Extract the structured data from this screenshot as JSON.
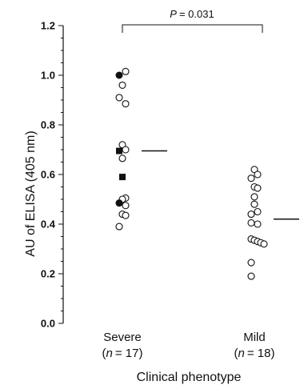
{
  "chart_data": {
    "type": "scatter",
    "ylabel": "AU of ELISA (405 nm)",
    "xlabel": "Clinical phenotype",
    "ylim": [
      0,
      1.2
    ],
    "yticks": [
      "0.0",
      "0.2",
      "0.4",
      "0.6",
      "0.8",
      "1.0",
      "1.2"
    ],
    "grid": false,
    "categories": [
      {
        "name": "Severe",
        "n_label": "n",
        "n_value": "= 17"
      },
      {
        "name": "Mild",
        "n_label": "n",
        "n_value": "= 18"
      }
    ],
    "significance": {
      "label": "P",
      "value": "= 0.031"
    },
    "groups": [
      {
        "category": "Severe",
        "mean": 0.695,
        "points": [
          {
            "y": 1.015,
            "dx": 1,
            "marker": "open-circle"
          },
          {
            "y": 1.0,
            "dx": -1,
            "marker": "filled-circle"
          },
          {
            "y": 0.96,
            "dx": 0,
            "marker": "open-circle"
          },
          {
            "y": 0.91,
            "dx": -1,
            "marker": "open-circle"
          },
          {
            "y": 0.885,
            "dx": 1,
            "marker": "open-circle"
          },
          {
            "y": 0.72,
            "dx": 0,
            "marker": "open-circle"
          },
          {
            "y": 0.7,
            "dx": 1,
            "marker": "open-circle"
          },
          {
            "y": 0.695,
            "dx": -1,
            "marker": "filled-square"
          },
          {
            "y": 0.665,
            "dx": 0,
            "marker": "open-circle"
          },
          {
            "y": 0.59,
            "dx": 0,
            "marker": "filled-square"
          },
          {
            "y": 0.505,
            "dx": 1,
            "marker": "open-circle"
          },
          {
            "y": 0.5,
            "dx": 0,
            "marker": "open-circle"
          },
          {
            "y": 0.485,
            "dx": -1,
            "marker": "filled-circle"
          },
          {
            "y": 0.475,
            "dx": 1,
            "marker": "open-circle"
          },
          {
            "y": 0.44,
            "dx": 0,
            "marker": "open-circle"
          },
          {
            "y": 0.435,
            "dx": 1,
            "marker": "open-circle"
          },
          {
            "y": 0.39,
            "dx": -1,
            "marker": "open-circle"
          }
        ]
      },
      {
        "category": "Mild",
        "mean": 0.42,
        "points": [
          {
            "y": 0.62,
            "dx": 0,
            "marker": "open-circle"
          },
          {
            "y": 0.6,
            "dx": 1,
            "marker": "open-circle"
          },
          {
            "y": 0.585,
            "dx": -1,
            "marker": "open-circle"
          },
          {
            "y": 0.55,
            "dx": 0,
            "marker": "open-circle"
          },
          {
            "y": 0.545,
            "dx": 1,
            "marker": "open-circle"
          },
          {
            "y": 0.51,
            "dx": 0,
            "marker": "open-circle"
          },
          {
            "y": 0.48,
            "dx": 0,
            "marker": "open-circle"
          },
          {
            "y": 0.45,
            "dx": 1,
            "marker": "open-circle"
          },
          {
            "y": 0.44,
            "dx": -1,
            "marker": "open-circle"
          },
          {
            "y": 0.405,
            "dx": -1,
            "marker": "open-circle"
          },
          {
            "y": 0.4,
            "dx": 1,
            "marker": "open-circle"
          },
          {
            "y": 0.34,
            "dx": -1,
            "marker": "open-circle"
          },
          {
            "y": 0.335,
            "dx": 0,
            "marker": "open-circle"
          },
          {
            "y": 0.33,
            "dx": 1,
            "marker": "open-circle"
          },
          {
            "y": 0.325,
            "dx": 2,
            "marker": "open-circle"
          },
          {
            "y": 0.32,
            "dx": 3,
            "marker": "open-circle"
          },
          {
            "y": 0.245,
            "dx": -1,
            "marker": "open-circle"
          },
          {
            "y": 0.19,
            "dx": -1,
            "marker": "open-circle"
          }
        ]
      }
    ]
  }
}
